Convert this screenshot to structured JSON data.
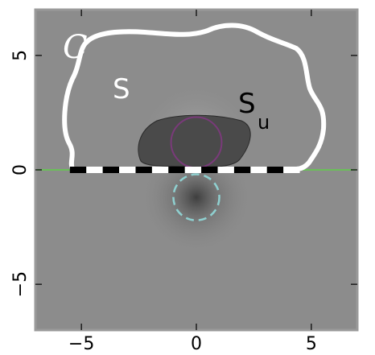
{
  "diagram": {
    "x_range": [
      -7,
      7
    ],
    "y_range": [
      -7,
      7
    ],
    "x_ticks": [
      {
        "value": -5,
        "label": "−5"
      },
      {
        "value": 0,
        "label": "0"
      },
      {
        "value": 5,
        "label": "5"
      }
    ],
    "y_ticks": [
      {
        "value": 5,
        "label": "5"
      },
      {
        "value": 0,
        "label": "0"
      },
      {
        "value": -5,
        "label": "−5"
      }
    ],
    "labels": {
      "C": "C",
      "S": "S",
      "Su": "S",
      "Su_sub": "u"
    },
    "colors": {
      "background": "#8c8c8c",
      "frame": "#9a9a9a",
      "curve_C": "#ffffff",
      "region_Su": "#4a4a4a",
      "circle_upper": "#7a3a7a",
      "circle_lower": "#8fd0d0",
      "horizon_line": "#5fcf4a",
      "dashed_segment_dark": "#000000",
      "dashed_segment_light": "#ffffff"
    },
    "sources": {
      "upper_circle": {
        "center": [
          0,
          1.2
        ],
        "radius": 1.1
      },
      "lower_circle": {
        "center": [
          0,
          -1.2
        ],
        "radius": 1.0
      }
    },
    "segment": {
      "from": -5.5,
      "to": 4.5
    }
  }
}
